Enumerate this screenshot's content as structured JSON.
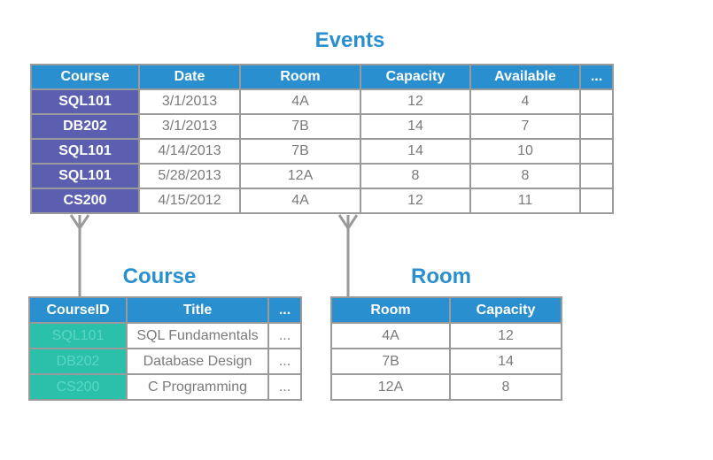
{
  "events": {
    "title": "Events",
    "columns": [
      "Course",
      "Date",
      "Room",
      "Capacity",
      "Available",
      "..."
    ],
    "rows": [
      [
        "SQL101",
        "3/1/2013",
        "4A",
        "12",
        "4",
        ""
      ],
      [
        "DB202",
        "3/1/2013",
        "7B",
        "14",
        "7",
        ""
      ],
      [
        "SQL101",
        "4/14/2013",
        "7B",
        "14",
        "10",
        ""
      ],
      [
        "SQL101",
        "5/28/2013",
        "12A",
        "8",
        "8",
        ""
      ],
      [
        "CS200",
        "4/15/2012",
        "4A",
        "12",
        "11",
        ""
      ]
    ]
  },
  "course": {
    "title": "Course",
    "columns": [
      "CourseID",
      "Title",
      "..."
    ],
    "rows": [
      [
        "SQL101",
        "SQL Fundamentals",
        "..."
      ],
      [
        "DB202",
        "Database Design",
        "..."
      ],
      [
        "CS200",
        "C Programming",
        "..."
      ]
    ]
  },
  "room": {
    "title": "Room",
    "columns": [
      "Room",
      "Capacity"
    ],
    "rows": [
      [
        "4A",
        "12"
      ],
      [
        "7B",
        "14"
      ],
      [
        "12A",
        "8"
      ]
    ]
  },
  "colors": {
    "header_blue": "#2a8fcf",
    "key_purple": "#5c5fb0",
    "key_teal": "#2ac0aa",
    "border_gray": "#9a9a9a"
  }
}
